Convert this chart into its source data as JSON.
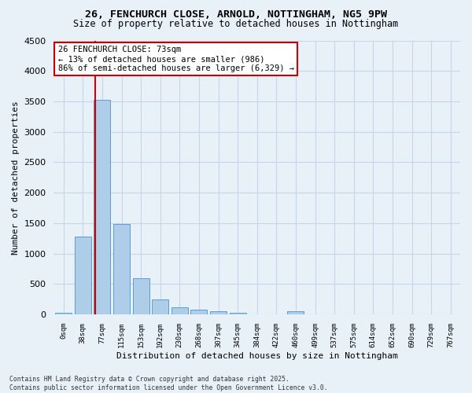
{
  "title": "26, FENCHURCH CLOSE, ARNOLD, NOTTINGHAM, NG5 9PW",
  "subtitle": "Size of property relative to detached houses in Nottingham",
  "xlabel": "Distribution of detached houses by size in Nottingham",
  "ylabel": "Number of detached properties",
  "categories": [
    "0sqm",
    "38sqm",
    "77sqm",
    "115sqm",
    "153sqm",
    "192sqm",
    "230sqm",
    "268sqm",
    "307sqm",
    "345sqm",
    "384sqm",
    "422sqm",
    "460sqm",
    "499sqm",
    "537sqm",
    "575sqm",
    "614sqm",
    "652sqm",
    "690sqm",
    "729sqm",
    "767sqm"
  ],
  "values": [
    30,
    1280,
    3530,
    1490,
    590,
    240,
    115,
    80,
    50,
    30,
    0,
    0,
    50,
    0,
    0,
    0,
    0,
    0,
    0,
    0,
    0
  ],
  "bar_color": "#aecde8",
  "bar_edge_color": "#5b9bd5",
  "grid_color": "#c8d4e8",
  "background_color": "#e8f0f8",
  "vline_color": "#cc0000",
  "annotation_text": "26 FENCHURCH CLOSE: 73sqm\n← 13% of detached houses are smaller (986)\n86% of semi-detached houses are larger (6,329) →",
  "annotation_box_color": "white",
  "annotation_box_edge_color": "#cc0000",
  "ylim": [
    0,
    4500
  ],
  "yticks": [
    0,
    500,
    1000,
    1500,
    2000,
    2500,
    3000,
    3500,
    4000,
    4500
  ],
  "footnote": "Contains HM Land Registry data © Crown copyright and database right 2025.\nContains public sector information licensed under the Open Government Licence v3.0."
}
